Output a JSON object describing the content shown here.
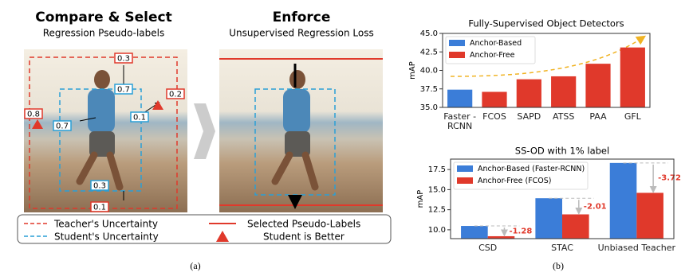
{
  "panel_a": {
    "left": {
      "title": "Compare & Select",
      "subtitle": "Regression Pseudo-labels",
      "box_labels": [
        "0.3",
        "0.7",
        "0.2",
        "0.1",
        "0.8",
        "0.7",
        "0.3",
        "0.1"
      ]
    },
    "right": {
      "title": "Enforce",
      "subtitle": "Unsupervised Regression Loss"
    },
    "legend": [
      "Teacher's Uncertainty",
      "Student's Uncertainty",
      "Selected Pseudo-Labels",
      "Student is Better"
    ],
    "caption": "(a)"
  },
  "chart_data": [
    {
      "type": "bar",
      "title": "Fully-Supervised Object Detectors",
      "ylabel": "mAP",
      "categories": [
        "Faster -RCNN",
        "FCOS",
        "SAPD",
        "ATSS",
        "PAA",
        "GFL"
      ],
      "series": [
        {
          "name": "Anchor-Based",
          "color": "#3b7dd8",
          "values": [
            37.4,
            null,
            null,
            null,
            null,
            null
          ]
        },
        {
          "name": "Anchor-Free",
          "color": "#e0392b",
          "values": [
            null,
            37.1,
            38.8,
            39.2,
            40.9,
            43.1
          ]
        }
      ],
      "ylim": [
        35,
        45
      ],
      "yticks": [
        {
          "value": 35,
          "label": "35.0"
        },
        37.5,
        {
          "value": 40,
          "label": "40.0"
        },
        42.5,
        {
          "value": 45,
          "label": "45.0"
        }
      ],
      "legend": "upper left"
    },
    {
      "type": "bar",
      "title": "SS-OD with 1% label",
      "ylabel": "mAP",
      "categories": [
        "CSD",
        "STAC",
        "Unbiased Teacher"
      ],
      "series": [
        {
          "name": "Anchor-Based (Faster-RCNN)",
          "color": "#3b7dd8",
          "values": [
            10.48,
            13.93,
            18.32
          ]
        },
        {
          "name": "Anchor-Free (FCOS)",
          "color": "#e0392b",
          "values": [
            9.2,
            11.92,
            14.6
          ]
        }
      ],
      "annotations": [
        "-1.28",
        "-2.01",
        "-3.72"
      ],
      "ylim": [
        8.9,
        18.8
      ],
      "yticks": [
        {
          "value": 10,
          "label": "10.0"
        },
        12.5,
        {
          "value": 15,
          "label": "15.0"
        },
        17.5
      ],
      "legend": "upper left"
    }
  ],
  "caption_b": "(b)"
}
